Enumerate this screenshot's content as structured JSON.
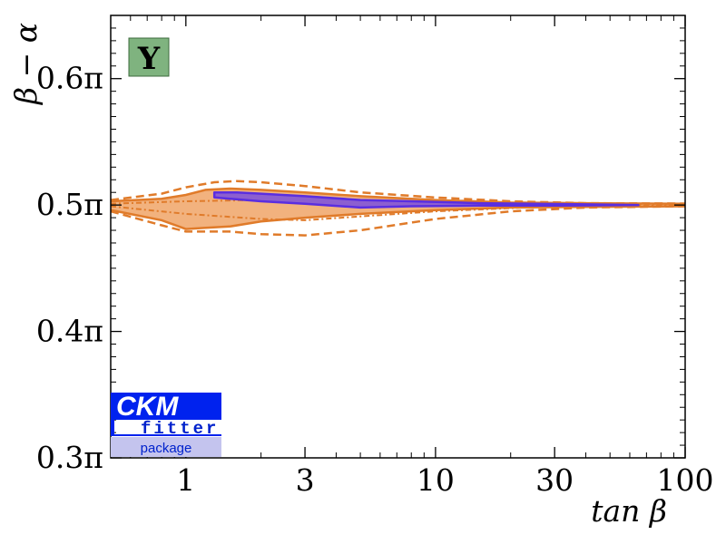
{
  "chart_data": {
    "type": "area",
    "xlabel": "tan β",
    "ylabel": "β − α",
    "x_scale": "log",
    "xlim": [
      0.5,
      100
    ],
    "ylim": [
      0.3,
      0.65
    ],
    "y_unit": "π",
    "x_ticks": [
      1,
      3,
      10,
      30,
      100
    ],
    "x_tick_labels": [
      "1",
      "3",
      "10",
      "30",
      "100"
    ],
    "y_ticks": [
      0.3,
      0.4,
      0.5,
      0.6
    ],
    "y_tick_labels": [
      "0.3π",
      "0.4π",
      "0.5π",
      "0.6π"
    ],
    "badge": "Y",
    "logo": {
      "line1": "CKM",
      "line2": "fitter",
      "line3": "package"
    },
    "colors": {
      "orange_fill": "#f2b27e",
      "orange_line": "#e07b2a",
      "purple_fill": "#8c5fd0",
      "purple_line": "#5a2ee0",
      "badge_fill": "#7fb37f",
      "logo_blue": "#0022ee",
      "logo_light": "#c4c4ee"
    },
    "series": [
      {
        "style": "orange-filled-solid",
        "upper": [
          [
            0.5,
            0.503
          ],
          [
            0.8,
            0.505
          ],
          [
            1.0,
            0.508
          ],
          [
            1.2,
            0.512
          ],
          [
            1.5,
            0.513
          ],
          [
            2.0,
            0.512
          ],
          [
            3.0,
            0.51
          ],
          [
            5.0,
            0.507
          ],
          [
            10,
            0.504
          ],
          [
            20,
            0.502
          ],
          [
            40,
            0.5015
          ],
          [
            100,
            0.501
          ]
        ],
        "lower": [
          [
            100,
            0.499
          ],
          [
            40,
            0.4985
          ],
          [
            20,
            0.498
          ],
          [
            10,
            0.496
          ],
          [
            5,
            0.493
          ],
          [
            3,
            0.49
          ],
          [
            2,
            0.487
          ],
          [
            1.5,
            0.483
          ],
          [
            1.2,
            0.482
          ],
          [
            1.0,
            0.481
          ],
          [
            0.8,
            0.488
          ],
          [
            0.5,
            0.496
          ]
        ]
      },
      {
        "style": "orange-dashed",
        "upper": [
          [
            0.5,
            0.504
          ],
          [
            0.8,
            0.509
          ],
          [
            1.0,
            0.514
          ],
          [
            1.3,
            0.518
          ],
          [
            1.6,
            0.519
          ],
          [
            2.0,
            0.518
          ],
          [
            3.0,
            0.515
          ],
          [
            5.0,
            0.51
          ],
          [
            10,
            0.506
          ],
          [
            20,
            0.503
          ],
          [
            40,
            0.5015
          ],
          [
            100,
            0.5012
          ]
        ],
        "lower": [
          [
            0.5,
            0.495
          ],
          [
            0.8,
            0.484
          ],
          [
            1.0,
            0.479
          ],
          [
            1.5,
            0.479
          ],
          [
            2.0,
            0.477
          ],
          [
            3.0,
            0.476
          ],
          [
            5.0,
            0.48
          ],
          [
            10,
            0.489
          ],
          [
            20,
            0.495
          ],
          [
            40,
            0.498
          ],
          [
            100,
            0.499
          ]
        ]
      },
      {
        "style": "orange-dotted",
        "upper": [
          [
            0.5,
            0.501
          ],
          [
            1.0,
            0.503
          ],
          [
            2.0,
            0.504
          ],
          [
            3.0,
            0.505
          ],
          [
            5.0,
            0.504
          ],
          [
            10,
            0.502
          ],
          [
            30,
            0.501
          ],
          [
            100,
            0.5005
          ]
        ],
        "lower": [
          [
            0.5,
            0.499
          ],
          [
            1.0,
            0.493
          ],
          [
            2.0,
            0.489
          ],
          [
            3.0,
            0.488
          ],
          [
            5.0,
            0.491
          ],
          [
            10,
            0.495
          ],
          [
            30,
            0.499
          ],
          [
            100,
            0.4995
          ]
        ]
      },
      {
        "style": "purple-filled",
        "upper": [
          [
            1.3,
            0.51
          ],
          [
            1.6,
            0.51
          ],
          [
            2.0,
            0.509
          ],
          [
            3.0,
            0.507
          ],
          [
            5.0,
            0.504
          ],
          [
            8.0,
            0.503
          ],
          [
            15,
            0.5015
          ],
          [
            30,
            0.5008
          ],
          [
            65,
            0.5
          ]
        ],
        "lower": [
          [
            65,
            0.5
          ],
          [
            30,
            0.4995
          ],
          [
            15,
            0.4995
          ],
          [
            8,
            0.499
          ],
          [
            5,
            0.498
          ],
          [
            3,
            0.501
          ],
          [
            2,
            0.503
          ],
          [
            1.5,
            0.505
          ],
          [
            1.3,
            0.506
          ]
        ]
      }
    ]
  }
}
